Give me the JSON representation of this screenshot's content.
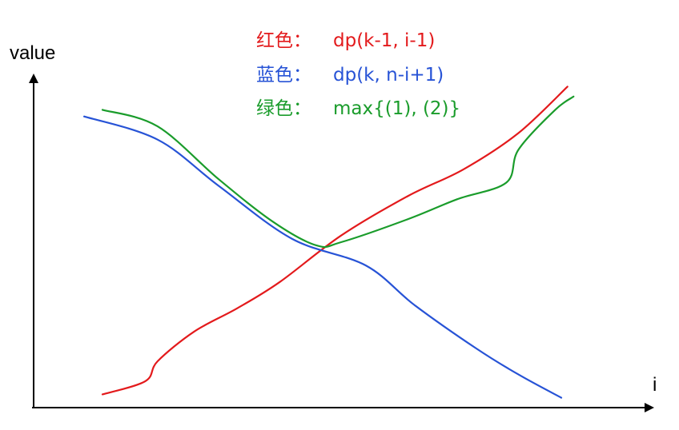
{
  "chart_data": {
    "type": "line",
    "title": "",
    "xlabel": "i",
    "ylabel": "value",
    "xlim": [
      0,
      100
    ],
    "ylim": [
      0,
      100
    ],
    "grid": false,
    "tick_labels": false,
    "legend_position": "top-center",
    "series": [
      {
        "name": "红色：",
        "formula": "dp(k-1, i-1)",
        "color": "#e31a1c",
        "points": [
          [
            11,
            4
          ],
          [
            18,
            8
          ],
          [
            20,
            14
          ],
          [
            26,
            23
          ],
          [
            33,
            30
          ],
          [
            40,
            38
          ],
          [
            50,
            52
          ],
          [
            61,
            64
          ],
          [
            70,
            72
          ],
          [
            79,
            83
          ],
          [
            87,
            97
          ]
        ]
      },
      {
        "name": "蓝色：",
        "formula": "dp(k, n-i+1)",
        "color": "#2753d6",
        "points": [
          [
            8,
            88
          ],
          [
            20,
            81
          ],
          [
            30,
            67
          ],
          [
            42,
            51
          ],
          [
            54,
            43
          ],
          [
            62,
            31
          ],
          [
            72,
            18
          ],
          [
            79,
            10
          ],
          [
            86,
            3
          ]
        ]
      },
      {
        "name": "绿色：",
        "formula": "max{(1), (2)}",
        "color": "#1a9c2b",
        "points": [
          [
            11,
            90
          ],
          [
            20,
            85
          ],
          [
            30,
            69
          ],
          [
            39,
            56
          ],
          [
            46,
            49
          ],
          [
            50,
            50
          ],
          [
            61,
            57
          ],
          [
            69,
            63
          ],
          [
            77,
            68
          ],
          [
            79,
            78
          ],
          [
            85,
            90
          ],
          [
            88,
            94
          ]
        ]
      }
    ]
  }
}
